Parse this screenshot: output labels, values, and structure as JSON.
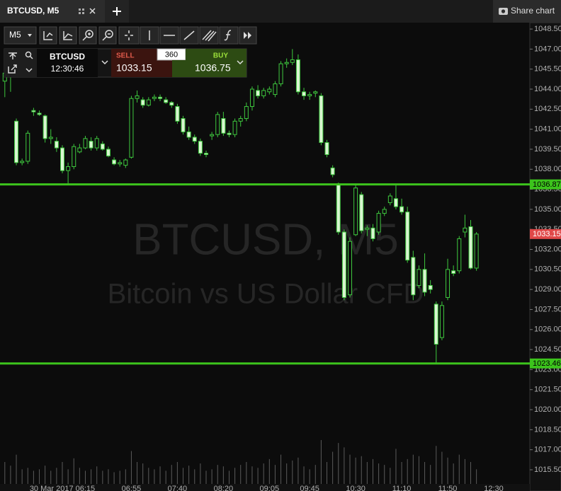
{
  "tab": {
    "title": "BTCUSD, M5",
    "share": "Share chart"
  },
  "toolbar": {
    "timeframe": "M5"
  },
  "trade_panel": {
    "symbol": "BTCUSD",
    "time": "12:30:46",
    "sell_label": "SELL",
    "sell_price": "1033.15",
    "volume": "360",
    "buy_label": "BUY",
    "buy_price": "1036.75"
  },
  "chart_data": {
    "type": "candlestick",
    "watermark": "BTCUSD, M5",
    "watermark_subtitle": "Bitcoin vs US Dollar CFD",
    "up_color": "#3ec83e",
    "down_color": "#d8f5d0",
    "level_color": "#3cc41c",
    "current_color": "#e04848",
    "categories": [
      null,
      null,
      null,
      null,
      null,
      null,
      null,
      null,
      null,
      null,
      "30 Mar 2017 06:15",
      null,
      null,
      null,
      null,
      null,
      null,
      null,
      null,
      null,
      null,
      null,
      "06:55",
      null,
      null,
      null,
      null,
      null,
      null,
      null,
      "07:40",
      null,
      null,
      null,
      null,
      null,
      null,
      null,
      "08:20",
      null,
      null,
      null,
      null,
      null,
      null,
      null,
      "09:05",
      null,
      null,
      null,
      null,
      null,
      null,
      "09:45",
      null,
      null,
      null,
      null,
      null,
      null,
      null,
      "10:30",
      null,
      null,
      null,
      null,
      null,
      null,
      null,
      "11:10",
      null,
      null,
      null,
      null,
      null,
      null,
      null,
      "11:50",
      null,
      null,
      null,
      null,
      null,
      null,
      null,
      "12:30"
    ],
    "open": [
      1044.6,
      1045.0,
      1041.6,
      1038.5,
      1038.6,
      1042.4,
      1042.2,
      1042.0,
      1040.3,
      1040.1,
      1039.6,
      1037.9,
      1038.2,
      1039.3,
      1039.6,
      1040.1,
      1039.6,
      1039.9,
      1039.5,
      1038.7,
      1038.4,
      1038.3,
      1038.9,
      1043.3,
      1043.2,
      1042.8,
      1043.3,
      1043.4,
      1043.2,
      1043.0,
      1042.7,
      1041.8,
      1040.8,
      1040.4,
      1040.1,
      1039.2,
      1040.5,
      1040.6,
      1041.8,
      1040.7,
      1040.6,
      1041.6,
      1041.8,
      1042.7,
      1043.9,
      1043.5,
      1043.8,
      1043.6,
      1044.4,
      1045.9,
      1046.0,
      1046.2,
      1043.8,
      1043.5,
      1043.7,
      1043.5,
      1040.0,
      1038.1,
      1036.9,
      1033.3,
      1028.6,
      1033.1,
      1036.1,
      1033.5,
      1033.6,
      1033.3,
      1034.7,
      1035.5,
      1035.8,
      1035.2,
      1034.8,
      1031.4,
      1029.3,
      1030.5,
      1029.3,
      1027.9,
      1025.4,
      1028.4,
      1030.4,
      1030.4,
      1033.3,
      1033.7,
      1030.6,
      null,
      null,
      null
    ],
    "high": [
      1045.6,
      1046.4,
      1041.8,
      1038.8,
      1040.9,
      1042.6,
      1042.4,
      1042.1,
      1041.0,
      1040.4,
      1039.8,
      1038.5,
      1039.9,
      1039.9,
      1040.5,
      1040.4,
      1040.5,
      1040.1,
      1039.7,
      1038.9,
      1038.7,
      1038.8,
      1043.5,
      1043.9,
      1043.4,
      1043.4,
      1043.6,
      1043.6,
      1043.4,
      1043.1,
      1042.9,
      1042.0,
      1041.2,
      1040.6,
      1040.3,
      1039.4,
      1040.8,
      1042.3,
      1042.3,
      1040.9,
      1041.8,
      1042.0,
      1043.0,
      1044.2,
      1044.3,
      1044.1,
      1044.2,
      1044.6,
      1046.1,
      1046.3,
      1047.0,
      1046.6,
      1044.1,
      1043.8,
      1043.9,
      1043.7,
      1040.2,
      1038.3,
      1037.0,
      1033.5,
      1032.9,
      1036.8,
      1036.3,
      1033.8,
      1033.9,
      1034.9,
      1035.2,
      1036.2,
      1036.9,
      1035.8,
      1035.2,
      1031.9,
      1030.8,
      1031.7,
      1029.7,
      1028.1,
      1028.1,
      1031.3,
      1030.8,
      1033.0,
      1034.6,
      1034.2,
      1033.3,
      null,
      null,
      null
    ],
    "low": [
      1043.4,
      1043.8,
      1038.3,
      1038.3,
      1038.4,
      1042.0,
      1042.0,
      1040.0,
      1039.9,
      1039.3,
      1037.7,
      1036.8,
      1038.0,
      1039.2,
      1039.5,
      1039.4,
      1039.4,
      1039.4,
      1038.9,
      1038.3,
      1038.2,
      1038.1,
      1038.8,
      1043.0,
      1042.6,
      1042.7,
      1043.1,
      1043.1,
      1042.9,
      1042.6,
      1041.4,
      1040.6,
      1040.2,
      1039.9,
      1039.0,
      1038.9,
      1040.2,
      1040.4,
      1040.5,
      1040.4,
      1040.4,
      1041.2,
      1041.6,
      1042.4,
      1043.3,
      1043.3,
      1043.6,
      1043.4,
      1044.2,
      1045.6,
      1045.8,
      1043.6,
      1043.2,
      1043.2,
      1043.4,
      1039.8,
      1038.9,
      1037.4,
      1033.1,
      1028.2,
      1028.4,
      1033.0,
      1033.2,
      1033.0,
      1032.6,
      1033.1,
      1034.5,
      1035.3,
      1035.0,
      1034.6,
      1031.0,
      1028.2,
      1029.1,
      1028.5,
      1028.7,
      1023.5,
      1025.2,
      1028.2,
      1030.0,
      1030.2,
      1032.9,
      1030.5,
      1030.4,
      null,
      null,
      null
    ],
    "close": [
      1045.2,
      1046.0,
      1038.5,
      1038.6,
      1040.7,
      1042.3,
      1042.1,
      1040.3,
      1040.4,
      1039.6,
      1037.9,
      1038.2,
      1039.7,
      1039.6,
      1040.3,
      1039.6,
      1040.3,
      1039.5,
      1039.0,
      1038.4,
      1038.5,
      1038.7,
      1043.3,
      1043.5,
      1042.8,
      1043.2,
      1043.4,
      1043.3,
      1043.0,
      1042.8,
      1041.6,
      1040.8,
      1040.4,
      1040.1,
      1039.2,
      1039.1,
      1040.6,
      1042.1,
      1040.7,
      1040.6,
      1041.6,
      1041.8,
      1042.7,
      1044.0,
      1043.5,
      1043.9,
      1044.0,
      1044.4,
      1045.9,
      1046.0,
      1046.2,
      1043.8,
      1043.5,
      1043.6,
      1043.8,
      1040.0,
      1039.1,
      1037.6,
      1033.3,
      1028.4,
      1032.6,
      1036.6,
      1033.4,
      1033.6,
      1032.8,
      1034.7,
      1035.0,
      1036.0,
      1035.2,
      1034.8,
      1031.2,
      1028.6,
      1030.5,
      1028.8,
      1029.0,
      1024.9,
      1027.8,
      1030.5,
      1030.2,
      1032.8,
      1033.6,
      1030.6,
      1033.15,
      null,
      null,
      null
    ],
    "volume": [
      30,
      25,
      40,
      20,
      22,
      18,
      20,
      25,
      18,
      22,
      30,
      20,
      35,
      22,
      18,
      20,
      24,
      18,
      20,
      16,
      18,
      20,
      45,
      30,
      28,
      22,
      20,
      24,
      18,
      26,
      30,
      22,
      25,
      20,
      28,
      18,
      20,
      26,
      24,
      18,
      22,
      26,
      30,
      24,
      22,
      28,
      34,
      26,
      40,
      28,
      32,
      36,
      24,
      20,
      26,
      60,
      30,
      44,
      56,
      50,
      40,
      36,
      38,
      30,
      34,
      28,
      26,
      22,
      48,
      30,
      34,
      40,
      38,
      30,
      26,
      52,
      44,
      36,
      28,
      40,
      34,
      30,
      20,
      null,
      null,
      null
    ],
    "levels": [
      1036.87,
      1023.46
    ],
    "current_price": 1033.15,
    "ylim": [
      1014.44,
      1048.98
    ],
    "yticks": [
      {
        "value": 1048.5,
        "label": "1048.50"
      },
      {
        "value": 1047,
        "label": "1047.00"
      },
      {
        "value": 1045.5,
        "label": "1045.50"
      },
      {
        "value": 1044,
        "label": "1044.00"
      },
      {
        "value": 1042.5,
        "label": "1042.50"
      },
      {
        "value": 1041,
        "label": "1041.00"
      },
      {
        "value": 1039.5,
        "label": "1039.50"
      },
      {
        "value": 1038,
        "label": "1038.00"
      },
      {
        "value": 1036.5,
        "label": "1036.50"
      },
      {
        "value": 1035,
        "label": "1035.00"
      },
      {
        "value": 1033.5,
        "label": "1033.50"
      },
      {
        "value": 1032,
        "label": "1032.00"
      },
      {
        "value": 1030.5,
        "label": "1030.50"
      },
      {
        "value": 1029,
        "label": "1029.00"
      },
      {
        "value": 1027.5,
        "label": "1027.50"
      },
      {
        "value": 1026,
        "label": "1026.00"
      },
      {
        "value": 1024.5,
        "label": "1024.50"
      },
      {
        "value": 1023,
        "label": "1023.00"
      },
      {
        "value": 1021.5,
        "label": "1021.50"
      },
      {
        "value": 1020,
        "label": "1020.00"
      },
      {
        "value": 1018.5,
        "label": "1018.50"
      },
      {
        "value": 1017,
        "label": "1017.00"
      },
      {
        "value": 1015.5,
        "label": "1015.50"
      }
    ]
  }
}
